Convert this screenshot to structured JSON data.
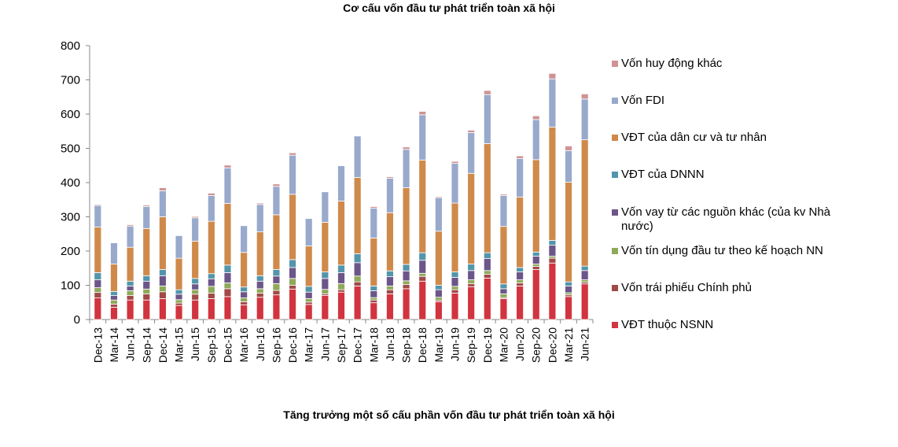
{
  "chart_data": {
    "type": "bar",
    "stacked": true,
    "title": "Cơ cấu vốn đầu tư phát triển toàn xã hội",
    "xlabel": "",
    "ylabel": "",
    "ylim": [
      0,
      800
    ],
    "yticks": [
      "0",
      "100",
      "200",
      "300",
      "400",
      "500",
      "600",
      "700",
      "800"
    ],
    "grid": false,
    "legend_position": "right",
    "categories": [
      "Dec-13",
      "Mar-14",
      "Jun-14",
      "Sep-14",
      "Dec-14",
      "Mar-15",
      "Jun-15",
      "Sep-15",
      "Dec-15",
      "Mar-16",
      "Jun-16",
      "Sep-16",
      "Dec-16",
      "Mar-17",
      "Jun-17",
      "Sep-17",
      "Dec-17",
      "Mar-18",
      "Jun-18",
      "Sep-18",
      "Dec-18",
      "Mar-19",
      "Jun-19",
      "Sep-19",
      "Dec-19",
      "Mar-20",
      "Jun-20",
      "Sep-20",
      "Dec-20",
      "Mar-21",
      "Jun-21"
    ],
    "series": [
      {
        "name": "VĐT thuộc NSNN",
        "color": "#d1343f",
        "values": [
          63,
          36,
          57,
          57,
          61,
          41,
          57,
          61,
          67,
          43,
          65,
          72,
          89,
          44,
          70,
          80,
          98,
          49,
          75,
          90,
          112,
          52,
          77,
          96,
          121,
          61,
          98,
          146,
          165,
          67,
          104
        ]
      },
      {
        "name": "Vốn trái phiếu Chính phủ",
        "color": "#a04a48",
        "values": [
          16,
          9,
          13,
          18,
          20,
          7,
          17,
          16,
          23,
          9,
          12,
          13,
          11,
          7,
          5,
          7,
          12,
          8,
          12,
          12,
          14,
          4,
          10,
          9,
          11,
          3,
          9,
          9,
          14,
          5,
          5
        ]
      },
      {
        "name": "Vốn tín dụng đầu tư theo kế hoạch NN",
        "color": "#8fa95a",
        "values": [
          14,
          12,
          14,
          14,
          17,
          10,
          13,
          20,
          17,
          11,
          13,
          20,
          20,
          10,
          13,
          18,
          17,
          7,
          11,
          11,
          9,
          9,
          10,
          11,
          11,
          11,
          9,
          7,
          6,
          6,
          7
        ]
      },
      {
        "name": "Vốn vay từ các nguồn khác (của kv Nhà nước)",
        "color": "#6c5689",
        "values": [
          23,
          13,
          14,
          23,
          30,
          16,
          17,
          22,
          30,
          18,
          22,
          22,
          32,
          19,
          32,
          32,
          39,
          20,
          27,
          29,
          38,
          22,
          26,
          27,
          35,
          15,
          23,
          23,
          32,
          20,
          27
        ]
      },
      {
        "name": "VĐT của DNNN",
        "color": "#5395ab",
        "values": [
          21,
          12,
          14,
          16,
          18,
          13,
          16,
          15,
          22,
          14,
          16,
          19,
          23,
          17,
          19,
          22,
          26,
          14,
          17,
          19,
          22,
          13,
          16,
          19,
          17,
          14,
          13,
          12,
          14,
          12,
          13
        ]
      },
      {
        "name": "VĐT của dân cư và tư nhân",
        "color": "#cf8a4b",
        "values": [
          133,
          80,
          99,
          138,
          154,
          92,
          109,
          153,
          180,
          101,
          128,
          160,
          191,
          118,
          145,
          187,
          223,
          140,
          170,
          224,
          271,
          158,
          201,
          265,
          319,
          168,
          206,
          270,
          331,
          291,
          369
        ]
      },
      {
        "name": "Vốn FDI",
        "color": "#98a9cc",
        "values": [
          63,
          62,
          62,
          64,
          76,
          66,
          68,
          75,
          104,
          78,
          80,
          83,
          114,
          80,
          89,
          103,
          121,
          87,
          101,
          112,
          132,
          98,
          116,
          119,
          143,
          90,
          112,
          117,
          141,
          92,
          119
        ]
      },
      {
        "name": "Vốn huy động khác",
        "color": "#cf9394",
        "values": [
          3,
          0,
          4,
          4,
          9,
          0,
          4,
          7,
          8,
          0,
          4,
          7,
          7,
          0,
          0,
          0,
          0,
          5,
          4,
          7,
          10,
          3,
          6,
          7,
          12,
          4,
          8,
          11,
          16,
          14,
          15
        ]
      }
    ]
  },
  "next_caption": "Tăng trưởng một số cấu phần vốn đầu tư phát triển toàn xã hội"
}
